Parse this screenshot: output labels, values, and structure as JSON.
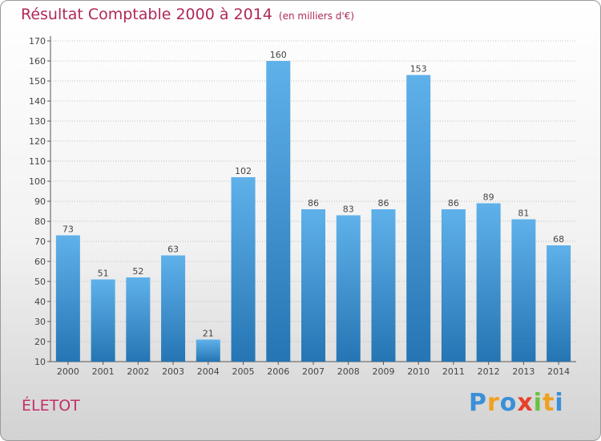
{
  "header": {
    "title": "Résultat Comptable 2000 à 2014",
    "subtitle": "(en milliers d'€)"
  },
  "footer": {
    "commune": "ÉLETOT",
    "logo": "Proxiti"
  },
  "colors": {
    "title": "#b0285a",
    "bar_light": "#5fb1ea",
    "bar_dark": "#2575b4",
    "grid": "#bfbfbf"
  },
  "chart_data": {
    "type": "bar",
    "title": "Résultat Comptable 2000 à 2014",
    "subtitle": "(en milliers d'€)",
    "xlabel": "",
    "ylabel": "",
    "categories": [
      "2000",
      "2001",
      "2002",
      "2003",
      "2004",
      "2005",
      "2006",
      "2007",
      "2008",
      "2009",
      "2010",
      "2011",
      "2012",
      "2013",
      "2014"
    ],
    "values": [
      73,
      51,
      52,
      63,
      21,
      102,
      160,
      86,
      83,
      86,
      153,
      86,
      89,
      81,
      68
    ],
    "ylim": [
      10,
      170
    ],
    "yticks": [
      10,
      20,
      30,
      40,
      50,
      60,
      70,
      80,
      90,
      100,
      110,
      120,
      130,
      140,
      150,
      160,
      170
    ],
    "grid": true
  }
}
